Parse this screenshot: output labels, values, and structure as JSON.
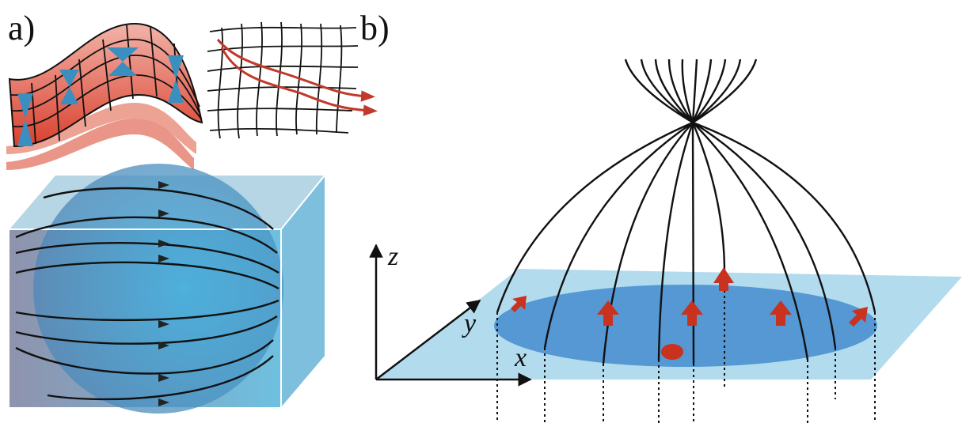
{
  "panel_a": {
    "label": "a)"
  },
  "panel_b": {
    "label": "b)",
    "axis_labels": [
      "z",
      "y",
      "x"
    ]
  }
}
